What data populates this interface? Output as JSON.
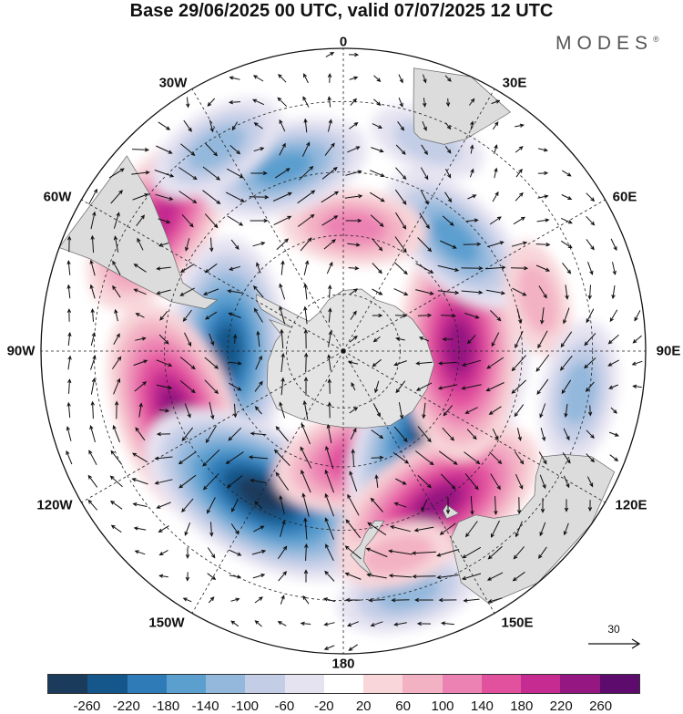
{
  "title": "Base 29/06/2025 00 UTC, valid 07/07/2025 12 UTC",
  "brand": "MODES",
  "brand_mark": "®",
  "longitude_labels": {
    "lon_0": "0",
    "lon_30e": "30E",
    "lon_60e": "60E",
    "lon_90e": "90E",
    "lon_120e": "120E",
    "lon_150e": "150E",
    "lon_180": "180",
    "lon_150w": "150W",
    "lon_120w": "120W",
    "lon_90w": "90W",
    "lon_60w": "60W",
    "lon_30w": "30W"
  },
  "reference_vector": {
    "value": "30"
  },
  "colorbar": {
    "colors": [
      "#1b3b5c",
      "#15578a",
      "#2f7bb8",
      "#5b9fcf",
      "#93b8dc",
      "#c3cde6",
      "#e6e3f1",
      "#ffffff",
      "#f8d6d9",
      "#f3b1c4",
      "#ec82b3",
      "#e2519e",
      "#c52b90",
      "#951781",
      "#5e0b6e"
    ],
    "ticks": [
      "-260",
      "-220",
      "-180",
      "-140",
      "-100",
      "-60",
      "-20",
      "20",
      "60",
      "100",
      "140",
      "180",
      "220",
      "260"
    ]
  },
  "map_colors": {
    "antarctica": "#e4e4e4",
    "land": "#dcdcdc",
    "coast": "#666666",
    "grid": "#222222",
    "arrows": "#111111"
  },
  "anomaly_centers": [
    {
      "lat": -35,
      "lon": -55,
      "level": 5
    },
    {
      "lat": -60,
      "lon": -90,
      "level": -6
    },
    {
      "lat": -45,
      "lon": -110,
      "level": 6
    },
    {
      "lat": -48,
      "lon": -150,
      "level": -7
    },
    {
      "lat": -62,
      "lon": 165,
      "level": 5
    },
    {
      "lat": -60,
      "lon": 125,
      "level": -7
    },
    {
      "lat": -45,
      "lon": 148,
      "level": 6
    },
    {
      "lat": -30,
      "lon": 165,
      "level": -3
    },
    {
      "lat": -60,
      "lon": 88,
      "level": 6
    },
    {
      "lat": -50,
      "lon": 45,
      "level": -4
    },
    {
      "lat": -58,
      "lon": 5,
      "level": 3
    },
    {
      "lat": -42,
      "lon": -18,
      "level": -4
    },
    {
      "lat": -32,
      "lon": -32,
      "level": -3
    },
    {
      "lat": -40,
      "lon": 75,
      "level": 2
    },
    {
      "lat": -32,
      "lon": 100,
      "level": -3
    },
    {
      "lat": -35,
      "lon": 22,
      "level": -2
    },
    {
      "lat": -38,
      "lon": 165,
      "level": 2
    }
  ]
}
